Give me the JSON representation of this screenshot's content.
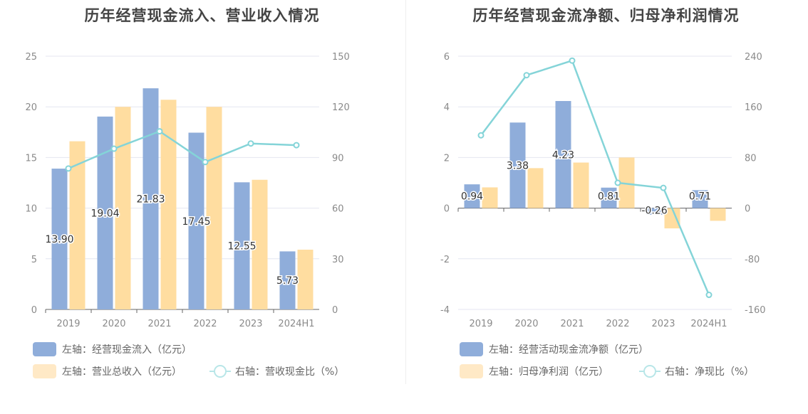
{
  "colors": {
    "bar_primary": "#8fadda",
    "bar_secondary": "#ffdda0",
    "line": "#84d4d8",
    "grid": "#e4e6f0",
    "axis": "#666666"
  },
  "chart_data": [
    {
      "type": "bar",
      "title": "历年经营现金流入、营业收入情况",
      "categories": [
        "2019",
        "2020",
        "2021",
        "2022",
        "2023",
        "2024H1"
      ],
      "y_left": {
        "ticks": [
          "0",
          "5",
          "10",
          "15",
          "20",
          "25"
        ],
        "ylim": [
          0,
          25
        ]
      },
      "y_right": {
        "ticks": [
          "0",
          "30",
          "60",
          "90",
          "120",
          "150"
        ],
        "ylim": [
          0,
          150
        ]
      },
      "series": [
        {
          "name": "左轴：经营现金流入（亿元）",
          "axis": "left",
          "kind": "bar",
          "values": [
            13.9,
            19.04,
            21.83,
            17.45,
            12.55,
            5.73
          ],
          "labels": [
            "13.90",
            "19.04",
            "21.83",
            "17.45",
            "12.55",
            "5.73"
          ]
        },
        {
          "name": "左轴：营业总收入（亿元）",
          "axis": "left",
          "kind": "bar",
          "values": [
            16.6,
            20.0,
            20.7,
            20.0,
            12.8,
            5.9
          ]
        },
        {
          "name": "右轴：营收现金比（%）",
          "axis": "right",
          "kind": "line",
          "values": [
            83.5,
            95.2,
            105.5,
            87.3,
            98.3,
            97.3
          ]
        }
      ],
      "legend": [
        "左轴：经营现金流入（亿元）",
        "左轴：营业总收入（亿元）",
        "右轴：营收现金比（%）"
      ]
    },
    {
      "type": "bar",
      "title": "历年经营现金流净额、归母净利润情况",
      "categories": [
        "2019",
        "2020",
        "2021",
        "2022",
        "2023",
        "2024H1"
      ],
      "y_left": {
        "ticks": [
          "-4",
          "-2",
          "0",
          "2",
          "4",
          "6"
        ],
        "ylim": [
          -4,
          6
        ]
      },
      "y_right": {
        "ticks": [
          "-160",
          "-80",
          "0",
          "80",
          "160",
          "240"
        ],
        "ylim": [
          -160,
          240
        ]
      },
      "series": [
        {
          "name": "左轴：经营活动现金流净额（亿元）",
          "axis": "left",
          "kind": "bar",
          "values": [
            0.94,
            3.38,
            4.23,
            0.81,
            -0.26,
            0.71
          ],
          "labels": [
            "0.94",
            "3.38",
            "4.23",
            "0.81",
            "-0.26",
            "0.71"
          ]
        },
        {
          "name": "左轴：归母净利润（亿元）",
          "axis": "left",
          "kind": "bar",
          "values": [
            0.82,
            1.58,
            1.8,
            2.0,
            -0.8,
            -0.5
          ]
        },
        {
          "name": "右轴：净现比（%）",
          "axis": "right",
          "kind": "line",
          "values": [
            115,
            210,
            233,
            40,
            32,
            -137
          ]
        }
      ],
      "legend": [
        "左轴：经营活动现金流净额（亿元）",
        "左轴：归母净利润（亿元）",
        "右轴：净现比（%）"
      ]
    }
  ]
}
